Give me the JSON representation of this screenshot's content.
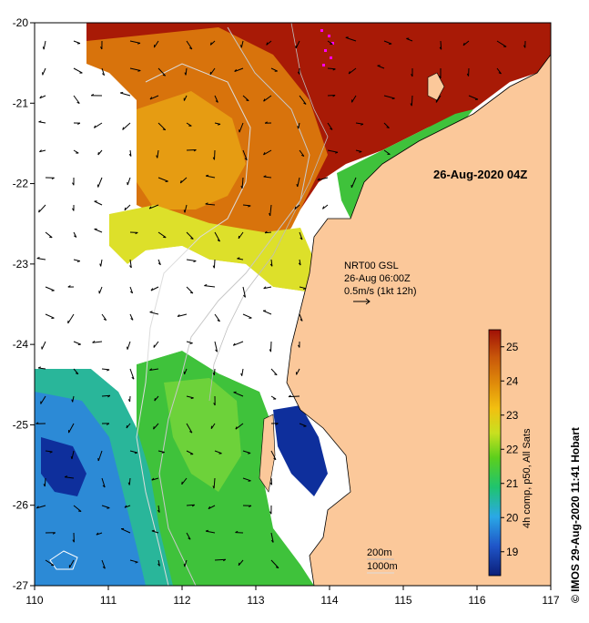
{
  "map": {
    "timestamp": "26-Aug-2020 04Z",
    "current_source": "NRT00 GSL",
    "current_time": "26-Aug 06:00Z",
    "current_scale": "0.5m/s (1kt 12h)",
    "contour_200": "200m",
    "contour_1000": "1000m",
    "credit": "© IMOS 29-Aug-2020 11:41 Hobart",
    "lon_ticks": [
      "110",
      "111",
      "112",
      "113",
      "114",
      "115",
      "116",
      "117"
    ],
    "lat_ticks": [
      "-20",
      "-21",
      "-22",
      "-23",
      "-24",
      "-25",
      "-26",
      "-27"
    ],
    "lon_range": [
      110,
      117
    ],
    "lat_range": [
      -27,
      -20
    ]
  },
  "colorbar": {
    "title": "4h comp, p50, All Sats",
    "ticks": [
      "25",
      "24",
      "23",
      "22",
      "21",
      "20",
      "19"
    ],
    "range": [
      18.3,
      25.5
    ],
    "colors": [
      "#0b1e78",
      "#1f55c8",
      "#2aa8e6",
      "#1fc46e",
      "#5ccf1c",
      "#c8e020",
      "#f2c010",
      "#e08c0a",
      "#c8560a",
      "#a01006"
    ]
  },
  "colors": {
    "land": "#fbc89a",
    "coastline": "#000000",
    "no_data": "#ffffff",
    "contour": "#c8c8c8",
    "hot": "#a81a06",
    "warm": "#d8730c",
    "mid": "#e69c12",
    "yellow": "#dde02a",
    "green": "#3fc23b",
    "teal": "#29b69a",
    "blue": "#2c8ad6",
    "deep": "#0e2f9c",
    "magenta": "#ff00ff"
  }
}
